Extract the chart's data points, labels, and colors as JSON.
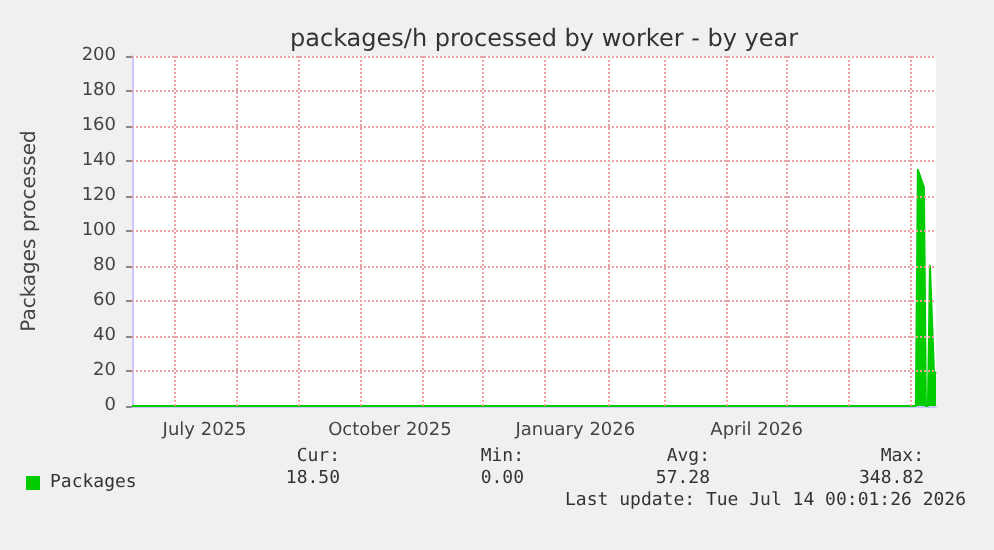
{
  "chart_data": {
    "type": "area",
    "title": "packages/h processed by worker - by year",
    "ylabel": "Packages processed",
    "series": [
      {
        "name": "Packages",
        "color": "#00cc00",
        "x": [
          "2025-06-10",
          "2025-09-01",
          "2025-12-01",
          "2026-03-01",
          "2026-06-01",
          "2026-07-04",
          "2026-07-05",
          "2026-07-08",
          "2026-07-09",
          "2026-07-10",
          "2026-07-11",
          "2026-07-13",
          "2026-07-14"
        ],
        "values": [
          0,
          0,
          0,
          0,
          0,
          0,
          135,
          125,
          0,
          0,
          80,
          20,
          18.5
        ]
      }
    ],
    "xlim": [
      "2025-06-10",
      "2026-07-14"
    ],
    "xticks": [
      {
        "value": "2025-07-01",
        "label": null
      },
      {
        "value": "2025-07-16",
        "label": "July 2025"
      },
      {
        "value": "2025-08-01",
        "label": null
      },
      {
        "value": "2025-09-01",
        "label": null
      },
      {
        "value": "2025-10-01",
        "label": null
      },
      {
        "value": "2025-10-16",
        "label": "October 2025"
      },
      {
        "value": "2025-11-01",
        "label": null
      },
      {
        "value": "2025-12-01",
        "label": null
      },
      {
        "value": "2026-01-01",
        "label": null
      },
      {
        "value": "2026-01-16",
        "label": "January 2026"
      },
      {
        "value": "2026-02-01",
        "label": null
      },
      {
        "value": "2026-03-01",
        "label": null
      },
      {
        "value": "2026-04-01",
        "label": null
      },
      {
        "value": "2026-04-16",
        "label": "April 2026"
      },
      {
        "value": "2026-05-01",
        "label": null
      },
      {
        "value": "2026-06-01",
        "label": null
      },
      {
        "value": "2026-07-01",
        "label": null
      }
    ],
    "ylim": [
      0,
      200
    ],
    "yticks": [
      0,
      20,
      40,
      60,
      80,
      100,
      120,
      140,
      160,
      180,
      200
    ],
    "grid": true,
    "legend": "bottom left",
    "annotations": [
      "Cur:",
      "18.50",
      "Min:",
      "0.00",
      "Avg:",
      "57.28",
      "Max:",
      "348.82",
      "Last update: Tue Jul 14 00:01:26 2026"
    ]
  }
}
